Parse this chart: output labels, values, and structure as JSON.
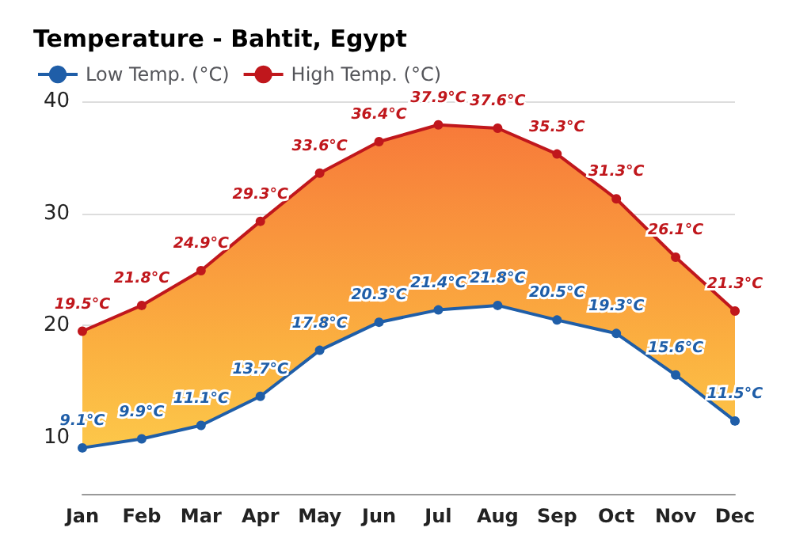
{
  "chart_data": {
    "type": "area",
    "title": "Temperature - Bahtit, Egypt",
    "categories": [
      "Jan",
      "Feb",
      "Mar",
      "Apr",
      "May",
      "Jun",
      "Jul",
      "Aug",
      "Sep",
      "Oct",
      "Nov",
      "Dec"
    ],
    "series": [
      {
        "name": "Low Temp. (°C)",
        "color": "#1f5ea8",
        "values": [
          9.1,
          9.9,
          11.1,
          13.7,
          17.8,
          20.3,
          21.4,
          21.8,
          20.5,
          19.3,
          15.6,
          11.5
        ],
        "value_labels": [
          "9.1°C",
          "9.9°C",
          "11.1°C",
          "13.7°C",
          "17.8°C",
          "20.3°C",
          "21.4°C",
          "21.8°C",
          "20.5°C",
          "19.3°C",
          "15.6°C",
          "11.5°C"
        ]
      },
      {
        "name": "High Temp. (°C)",
        "color": "#c0171c",
        "values": [
          19.5,
          21.8,
          24.9,
          29.3,
          33.6,
          36.4,
          37.9,
          37.6,
          35.3,
          31.3,
          26.1,
          21.3
        ],
        "value_labels": [
          "19.5°C",
          "21.8°C",
          "24.9°C",
          "29.3°C",
          "33.6°C",
          "36.4°C",
          "37.9°C",
          "37.6°C",
          "35.3°C",
          "31.3°C",
          "26.1°C",
          "21.3°C"
        ]
      }
    ],
    "ylim": [
      5,
      40
    ],
    "yticks": [
      10,
      20,
      30,
      40
    ],
    "grid": "y",
    "legend": "top left",
    "marker": "circle"
  }
}
